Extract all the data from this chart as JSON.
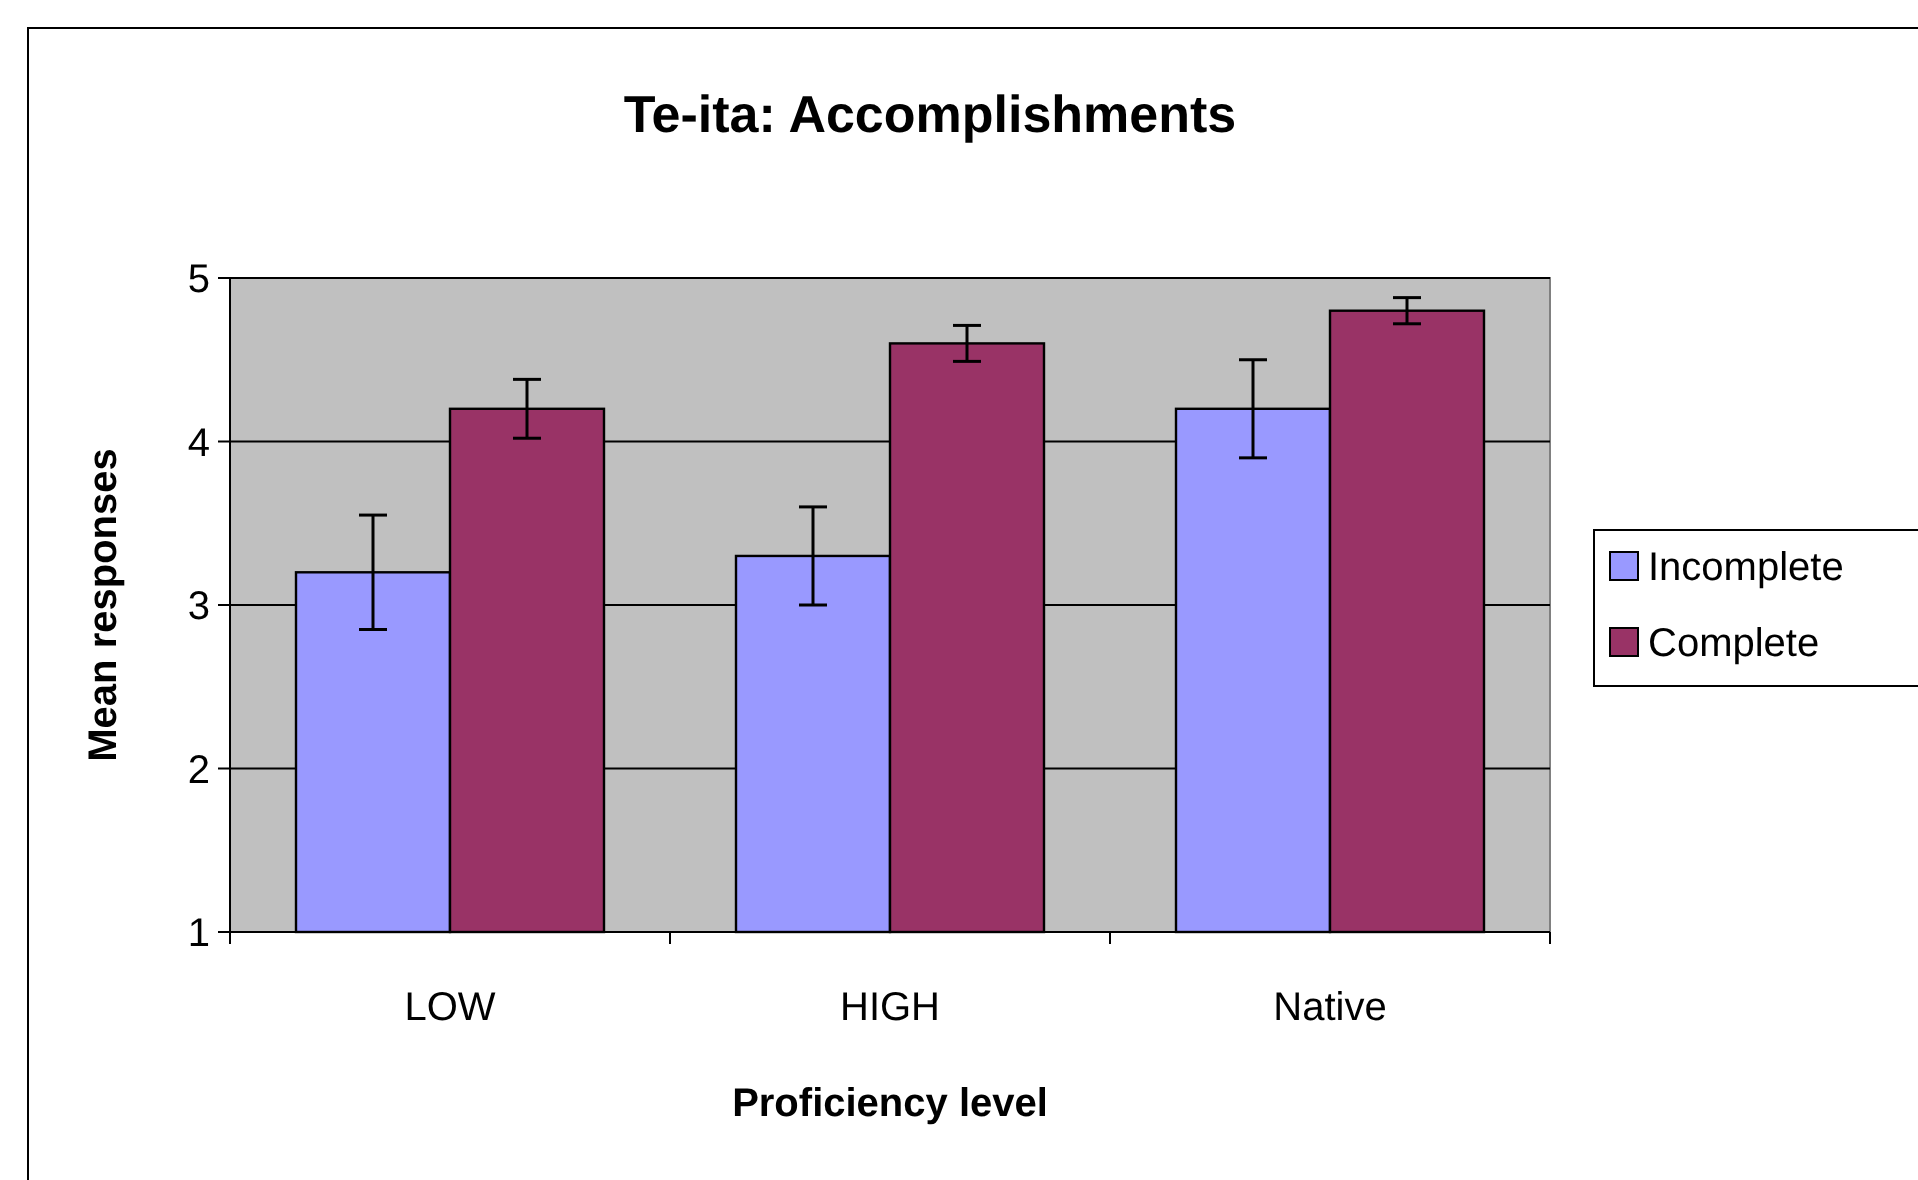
{
  "chart_data": {
    "type": "bar",
    "title": "Te-ita: Accomplishments",
    "xlabel": "Proficiency level",
    "ylabel": "Mean responses",
    "categories": [
      "LOW",
      "HIGH",
      "Native"
    ],
    "series": [
      {
        "name": "Incomplete",
        "color": "#9999ff",
        "values": [
          3.2,
          3.3,
          4.2
        ],
        "errors": [
          0.35,
          0.3,
          0.3
        ]
      },
      {
        "name": "Complete",
        "color": "#993366",
        "values": [
          4.2,
          4.6,
          4.8
        ],
        "errors": [
          0.18,
          0.11,
          0.08
        ]
      }
    ],
    "ylim": [
      1,
      5
    ],
    "yticks": [
      1,
      2,
      3,
      4,
      5
    ],
    "grid": "y",
    "legend": "right"
  }
}
